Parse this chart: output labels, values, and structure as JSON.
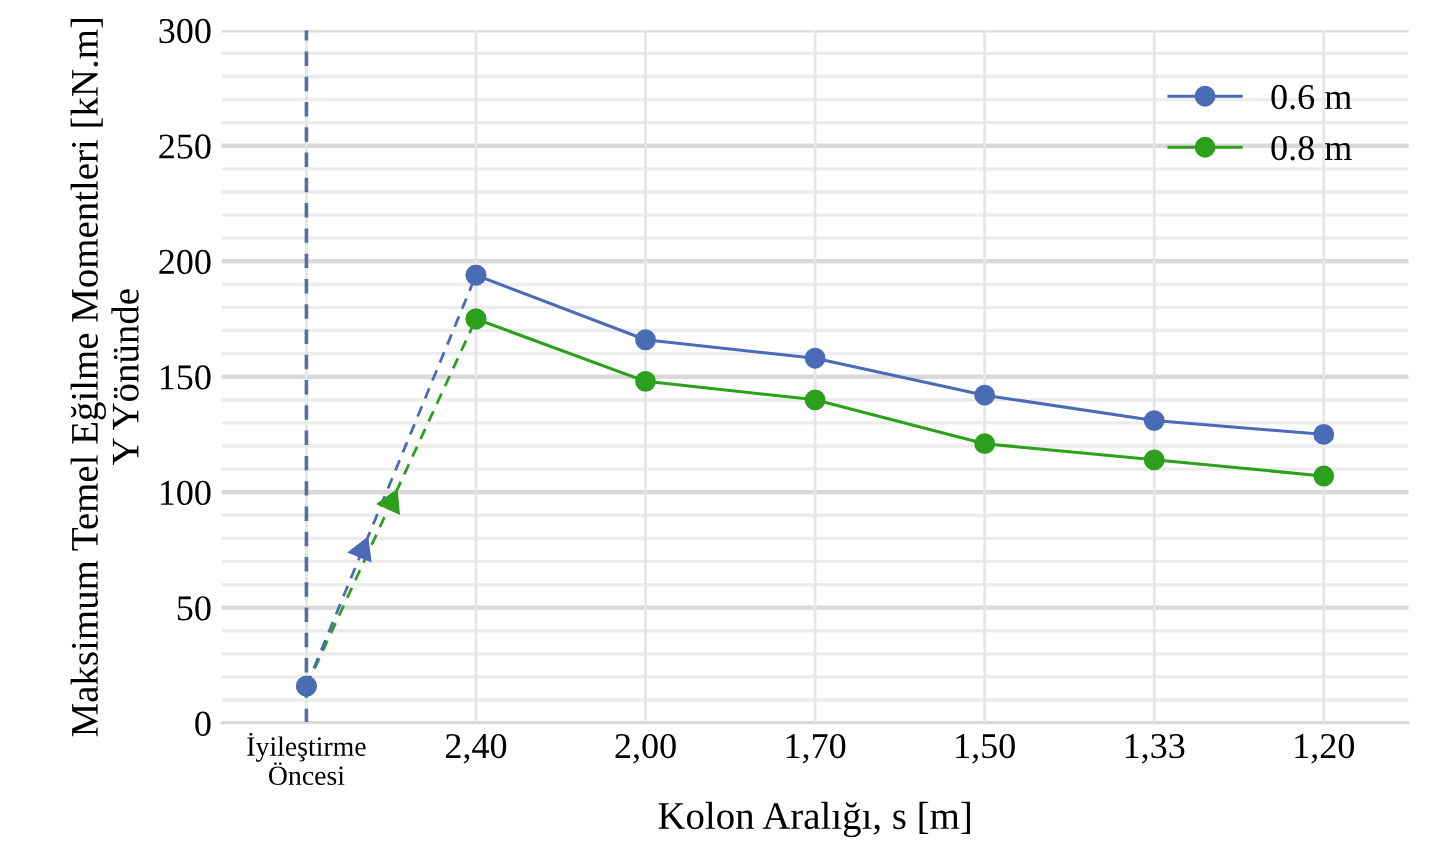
{
  "chart_data": {
    "type": "line",
    "xlabel": "Kolon Aralığı, s [m]",
    "ylabel": "Maksimum Temel Eğilme Momentleri [kN.m]\nY Yönünde",
    "categories": [
      "İyileştirme\nÖncesi",
      "2,40",
      "2,00",
      "1,70",
      "1,50",
      "1,33",
      "1,20"
    ],
    "series": [
      {
        "name": "0.6 m",
        "color": "#4a6bb5",
        "values": [
          null,
          194,
          166,
          158,
          142,
          131,
          125
        ]
      },
      {
        "name": "0.8 m",
        "color": "#2ca01c",
        "values": [
          null,
          175,
          148,
          140,
          121,
          114,
          107
        ]
      },
      {
        "color": "#4a6bb5",
        "line_style": "dashed",
        "values": [
          16,
          194,
          null,
          null,
          null,
          null,
          null
        ]
      },
      {
        "color": "#2ca01c",
        "line_style": "dashed",
        "values": [
          16,
          175,
          null,
          null,
          null,
          null,
          null
        ]
      }
    ],
    "ylim": [
      0,
      300
    ],
    "yticks": [
      0,
      {
        "value": 10,
        "label": null
      },
      {
        "value": 20,
        "label": null
      },
      {
        "value": 30,
        "label": null
      },
      {
        "value": 40,
        "label": null
      },
      50,
      {
        "value": 60,
        "label": null
      },
      {
        "value": 70,
        "label": null
      },
      {
        "value": 80,
        "label": null
      },
      {
        "value": 90,
        "label": null
      },
      100,
      {
        "value": 110,
        "label": null
      },
      {
        "value": 120,
        "label": null
      },
      {
        "value": 130,
        "label": null
      },
      {
        "value": 140,
        "label": null
      },
      150,
      {
        "value": 160,
        "label": null
      },
      {
        "value": 170,
        "label": null
      },
      {
        "value": 180,
        "label": null
      },
      {
        "value": 190,
        "label": null
      },
      200,
      {
        "value": 210,
        "label": null
      },
      {
        "value": 220,
        "label": null
      },
      {
        "value": 230,
        "label": null
      },
      {
        "value": 240,
        "label": null
      },
      250,
      {
        "value": 260,
        "label": null
      },
      {
        "value": 270,
        "label": null
      },
      {
        "value": 280,
        "label": null
      },
      {
        "value": 290,
        "label": null
      },
      300
    ],
    "ref_lines": [
      {
        "axis": "x",
        "value": "İyileştirme\nÖncesi",
        "color": "#5470a0",
        "line_style": "dashed"
      }
    ],
    "grid": true,
    "legend": "top right",
    "marker": "circle",
    "line_style": "solid"
  }
}
